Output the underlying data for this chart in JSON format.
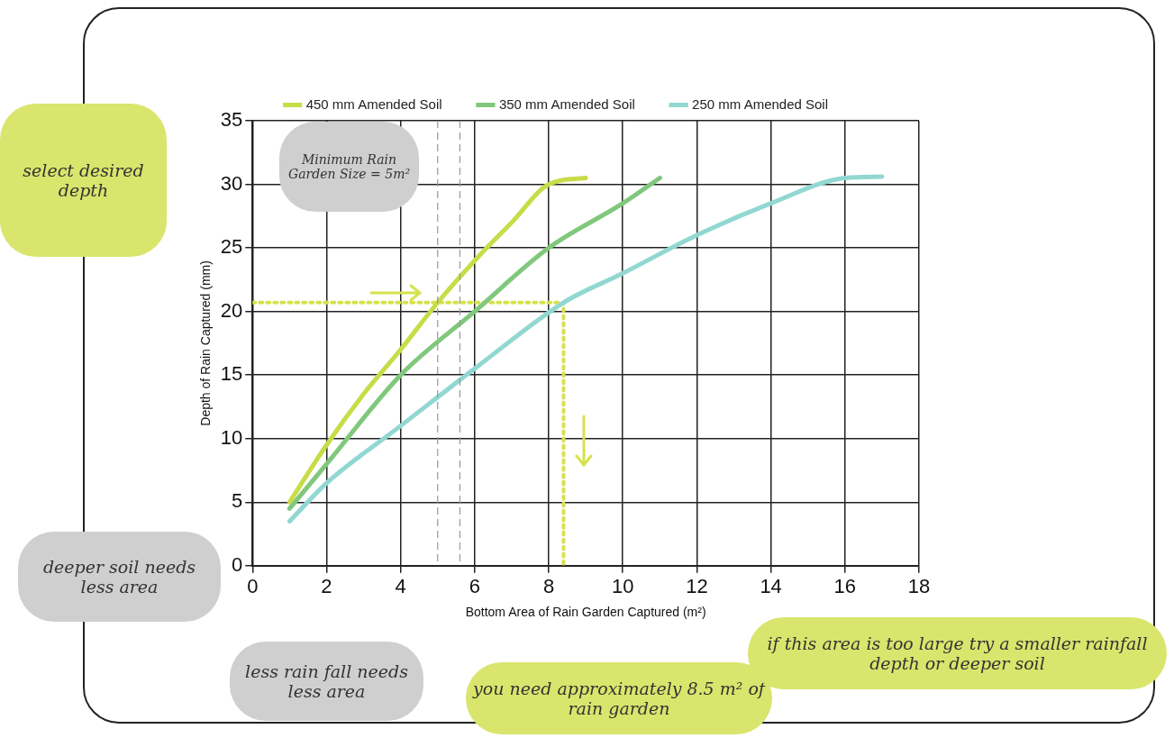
{
  "chart_data": {
    "type": "line",
    "xlabel": "Bottom Area of Rain Garden Captured (m²)",
    "ylabel": "Depth of Rain Captured (mm)",
    "xlim": [
      0,
      18
    ],
    "xticks": [
      0,
      2,
      4,
      6,
      8,
      10,
      12,
      14,
      16,
      18
    ],
    "ylim": [
      0,
      35
    ],
    "yticks": [
      0,
      5,
      10,
      15,
      20,
      25,
      30,
      35
    ],
    "grid": true,
    "legend": "top",
    "marker": "none",
    "line_style": "solid",
    "series": [
      {
        "name": "450 mm Amended Soil",
        "color": "#c8dc48",
        "x": [
          1,
          2,
          3,
          4,
          5,
          6,
          7,
          8,
          9
        ],
        "values": [
          5,
          9.5,
          13.5,
          17,
          20.7,
          24,
          27,
          30,
          30.5
        ]
      },
      {
        "name": "350 mm Amended Soil",
        "color": "#80c87c",
        "x": [
          1,
          2,
          4,
          6,
          8,
          10,
          11
        ],
        "values": [
          4.5,
          8,
          15,
          20,
          25,
          28.5,
          30.5
        ]
      },
      {
        "name": "250 mm Amended Soil",
        "color": "#92d8d2",
        "x": [
          1,
          2,
          4,
          6,
          8.4,
          10,
          12,
          14,
          16,
          17
        ],
        "values": [
          3.5,
          6.5,
          11,
          15.5,
          20.7,
          23,
          26,
          28.5,
          30.5,
          30.6
        ]
      },
      {
        "type": "line",
        "color": "#d6e24e",
        "line_style": "dotted",
        "x": [
          0,
          8.4,
          8.4
        ],
        "values": [
          20.7,
          20.7,
          0
        ]
      }
    ],
    "ref_lines": [
      {
        "axis": "x",
        "value": 5,
        "color": "#999999",
        "line_style": "dashed"
      },
      {
        "axis": "x",
        "value": 5.6,
        "color": "#999999",
        "line_style": "dashed"
      }
    ],
    "annotations": [
      "select desired depth",
      "Minimum Rain Garden Size = 5m²",
      "deeper soil needs less area",
      "less rain fall needs less area",
      "you need approximately 8.5 m² of rain garden",
      "if this area is too large try a smaller rainfall depth or deeper soil"
    ]
  }
}
